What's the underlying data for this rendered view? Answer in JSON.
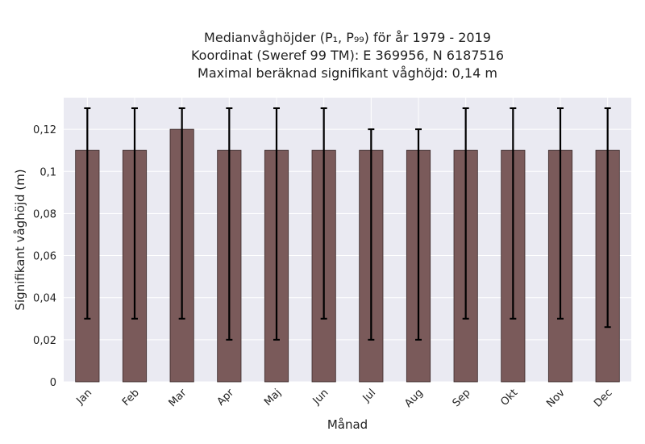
{
  "chart_data": {
    "type": "bar",
    "title_lines": [
      "Medianvåghöjder (P₁, P₉₉) för år 1979 - 2019",
      "Koordinat (Sweref 99 TM): E 369956, N 6187516",
      "Maximal beräknad signifikant våghöjd: 0,14 m"
    ],
    "xlabel": "Månad",
    "ylabel": "Signifikant våghöjd (m)",
    "categories": [
      "Jan",
      "Feb",
      "Mar",
      "Apr",
      "Maj",
      "Jun",
      "Jul",
      "Aug",
      "Sep",
      "Okt",
      "Nov",
      "Dec"
    ],
    "values": [
      0.11,
      0.11,
      0.12,
      0.11,
      0.11,
      0.11,
      0.11,
      0.11,
      0.11,
      0.11,
      0.11,
      0.11
    ],
    "error_low": [
      0.03,
      0.03,
      0.03,
      0.02,
      0.02,
      0.03,
      0.02,
      0.02,
      0.03,
      0.03,
      0.03,
      0.026
    ],
    "error_high": [
      0.13,
      0.13,
      0.13,
      0.13,
      0.13,
      0.13,
      0.12,
      0.12,
      0.13,
      0.13,
      0.13,
      0.13
    ],
    "ylim": [
      0,
      0.135
    ],
    "yticks": [
      0,
      0.02,
      0.04,
      0.06,
      0.08,
      0.1,
      0.12
    ],
    "ytick_labels": [
      "0",
      "0,02",
      "0,04",
      "0,06",
      "0,08",
      "0,1",
      "0,12"
    ],
    "grid": true,
    "colors": {
      "bar": "#7a5a5a",
      "bar_edge": "#3a2a2a",
      "errorbar": "#000000",
      "plot_background": "#eaeaf2",
      "grid": "#ffffff"
    }
  }
}
